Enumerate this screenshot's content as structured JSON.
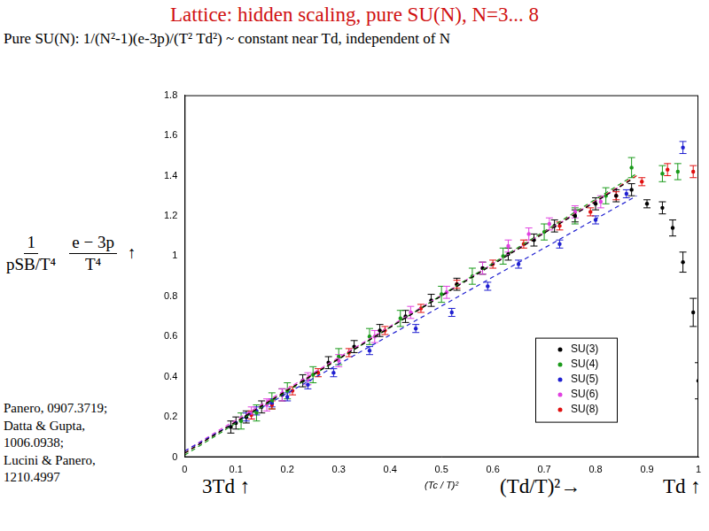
{
  "slide": {
    "title": "Lattice: hidden scaling, pure SU(N), N=3... 8",
    "subtitle": "Pure SU(N):  1/(N²-1)(e-3p)/(T² Td²) ~ constant near Td, independent of N",
    "y_label": {
      "fraction1": [
        "1",
        "pSB/T⁴"
      ],
      "fraction2": [
        "e − 3p",
        "T⁴"
      ],
      "arrow": "↑"
    },
    "references": [
      "Panero, 0907.3719;",
      "Datta & Gupta,",
      "1006.0938;",
      "Lucini & Panero,",
      "1210.4997"
    ],
    "annotations": [
      "3Td ↑",
      "(Td/T)²→",
      "Td ↑"
    ]
  },
  "chart_data": {
    "type": "scatter",
    "x_label": "(Tc / T)²",
    "xlim": [
      0,
      1
    ],
    "xticks": [
      0,
      0.1,
      0.2,
      0.3,
      0.4,
      0.5,
      0.6,
      0.7,
      0.8,
      0.9,
      1
    ],
    "ylim": [
      0,
      1.8
    ],
    "yticks": [
      0,
      0.2,
      0.4,
      0.6,
      0.8,
      1,
      1.2,
      1.4,
      1.6,
      1.8
    ],
    "grid": false,
    "legend": "lower right",
    "marker": "circle",
    "series": [
      {
        "name": "SU(3)",
        "color": "#000000",
        "values": [
          [
            0.09,
            0.15
          ],
          [
            0.1,
            0.17
          ],
          [
            0.12,
            0.2
          ],
          [
            0.15,
            0.25
          ],
          [
            0.19,
            0.31
          ],
          [
            0.23,
            0.38
          ],
          [
            0.28,
            0.47
          ],
          [
            0.33,
            0.55
          ],
          [
            0.38,
            0.63
          ],
          [
            0.43,
            0.7
          ],
          [
            0.48,
            0.78
          ],
          [
            0.53,
            0.86
          ],
          [
            0.58,
            0.94
          ],
          [
            0.63,
            1.01
          ],
          [
            0.68,
            1.08
          ],
          [
            0.72,
            1.15
          ],
          [
            0.76,
            1.2
          ],
          [
            0.8,
            1.26
          ],
          [
            0.84,
            1.3
          ],
          [
            0.87,
            1.33
          ],
          [
            0.9,
            1.26
          ],
          [
            0.93,
            1.24
          ],
          [
            0.95,
            1.14
          ],
          [
            0.97,
            0.97
          ],
          [
            0.99,
            0.72
          ],
          [
            1.0,
            0.38
          ]
        ],
        "errors": [
          0.03,
          0.03,
          0.03,
          0.03,
          0.03,
          0.03,
          0.03,
          0.03,
          0.03,
          0.03,
          0.03,
          0.03,
          0.03,
          0.03,
          0.03,
          0.03,
          0.03,
          0.03,
          0.03,
          0.03,
          0.02,
          0.03,
          0.04,
          0.05,
          0.07,
          0.09
        ]
      },
      {
        "name": "SU(4)",
        "color": "#1a9a1a",
        "values": [
          [
            0.11,
            0.18
          ],
          [
            0.14,
            0.22
          ],
          [
            0.17,
            0.28
          ],
          [
            0.2,
            0.33
          ],
          [
            0.25,
            0.41
          ],
          [
            0.3,
            0.5
          ],
          [
            0.36,
            0.6
          ],
          [
            0.42,
            0.69
          ],
          [
            0.5,
            0.81
          ],
          [
            0.56,
            0.9
          ],
          [
            0.62,
            1.0
          ],
          [
            0.7,
            1.12
          ],
          [
            0.76,
            1.2
          ],
          [
            0.82,
            1.3
          ],
          [
            0.87,
            1.44
          ],
          [
            0.93,
            1.41
          ],
          [
            0.96,
            1.42
          ]
        ],
        "errors": [
          0.04,
          0.04,
          0.04,
          0.04,
          0.04,
          0.04,
          0.04,
          0.04,
          0.04,
          0.04,
          0.04,
          0.04,
          0.04,
          0.04,
          0.05,
          0.04,
          0.04
        ]
      },
      {
        "name": "SU(5)",
        "color": "#1f1fd0",
        "values": [
          [
            0.12,
            0.2
          ],
          [
            0.14,
            0.23
          ],
          [
            0.17,
            0.27
          ],
          [
            0.2,
            0.3
          ],
          [
            0.24,
            0.36
          ],
          [
            0.29,
            0.42
          ],
          [
            0.36,
            0.53
          ],
          [
            0.45,
            0.64
          ],
          [
            0.52,
            0.72
          ],
          [
            0.59,
            0.85
          ],
          [
            0.65,
            0.96
          ],
          [
            0.73,
            1.06
          ],
          [
            0.8,
            1.18
          ],
          [
            0.86,
            1.31
          ],
          [
            0.97,
            1.54
          ]
        ],
        "errors": [
          0.02,
          0.02,
          0.02,
          0.02,
          0.02,
          0.02,
          0.02,
          0.02,
          0.02,
          0.02,
          0.02,
          0.02,
          0.02,
          0.02,
          0.03
        ]
      },
      {
        "name": "SU(6)",
        "color": "#e040e0",
        "values": [
          [
            0.13,
            0.22
          ],
          [
            0.16,
            0.26
          ],
          [
            0.19,
            0.31
          ],
          [
            0.24,
            0.39
          ],
          [
            0.3,
            0.48
          ],
          [
            0.37,
            0.6
          ],
          [
            0.44,
            0.72
          ],
          [
            0.51,
            0.82
          ],
          [
            0.58,
            0.94
          ],
          [
            0.63,
            1.05
          ],
          [
            0.67,
            1.11
          ],
          [
            0.71,
            1.16
          ],
          [
            0.76,
            1.22
          ],
          [
            0.81,
            1.27
          ]
        ],
        "errors": [
          0.03,
          0.03,
          0.03,
          0.03,
          0.03,
          0.03,
          0.03,
          0.03,
          0.03,
          0.03,
          0.03,
          0.03,
          0.03,
          0.03
        ]
      },
      {
        "name": "SU(8)",
        "color": "#e01010",
        "values": [
          [
            0.13,
            0.21
          ],
          [
            0.17,
            0.26
          ],
          [
            0.21,
            0.33
          ],
          [
            0.26,
            0.42
          ],
          [
            0.32,
            0.52
          ],
          [
            0.39,
            0.63
          ],
          [
            0.46,
            0.74
          ],
          [
            0.53,
            0.86
          ],
          [
            0.6,
            0.96
          ],
          [
            0.66,
            1.06
          ],
          [
            0.73,
            1.15
          ],
          [
            0.79,
            1.22
          ],
          [
            0.84,
            1.3
          ],
          [
            0.89,
            1.37
          ],
          [
            0.94,
            1.43
          ],
          [
            0.99,
            1.42
          ]
        ],
        "errors": [
          0.02,
          0.02,
          0.02,
          0.02,
          0.02,
          0.02,
          0.02,
          0.02,
          0.02,
          0.02,
          0.02,
          0.02,
          0.02,
          0.02,
          0.03,
          0.03
        ]
      }
    ],
    "fits": [
      {
        "color": "#000000",
        "line_style": "dashed",
        "values": [
          [
            0,
            0.02
          ],
          [
            0.87,
            1.38
          ]
        ]
      },
      {
        "color": "#1a9a1a",
        "line_style": "dashed",
        "values": [
          [
            0,
            0.01
          ],
          [
            0.88,
            1.41
          ]
        ]
      },
      {
        "color": "#1f1fd0",
        "line_style": "dashed",
        "values": [
          [
            0,
            0.03
          ],
          [
            0.88,
            1.3
          ]
        ]
      },
      {
        "color": "#e040e0",
        "line_style": "dashed",
        "values": [
          [
            0,
            0.03
          ],
          [
            0.85,
            1.35
          ]
        ]
      },
      {
        "color": "#e01010",
        "line_style": "dashed",
        "values": [
          [
            0,
            0.02
          ],
          [
            0.88,
            1.4
          ]
        ]
      }
    ]
  }
}
